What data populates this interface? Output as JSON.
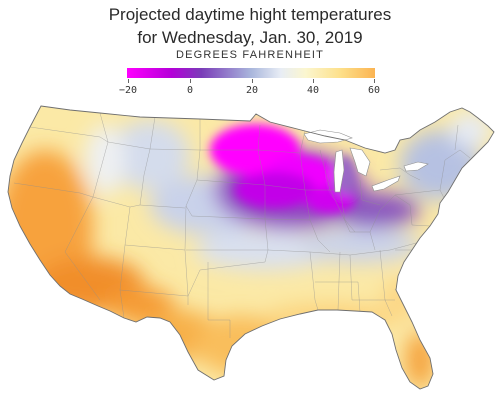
{
  "title": {
    "line1": "Projected daytime hight temperatures",
    "line2": "for Wednesday, Jan. 30, 2019"
  },
  "legend": {
    "title": "DEGREES FAHRENHEIT",
    "ticks": [
      "−20",
      "0",
      "20",
      "40",
      "60"
    ],
    "range": [
      -20,
      65
    ],
    "colors": {
      "very_cold": "#ff00ff",
      "cold": "#8a2bb8",
      "cool": "#a9b6dc",
      "mild": "#fbf6cf",
      "warm": "#fbb452",
      "hot": "#e8611c"
    }
  }
}
